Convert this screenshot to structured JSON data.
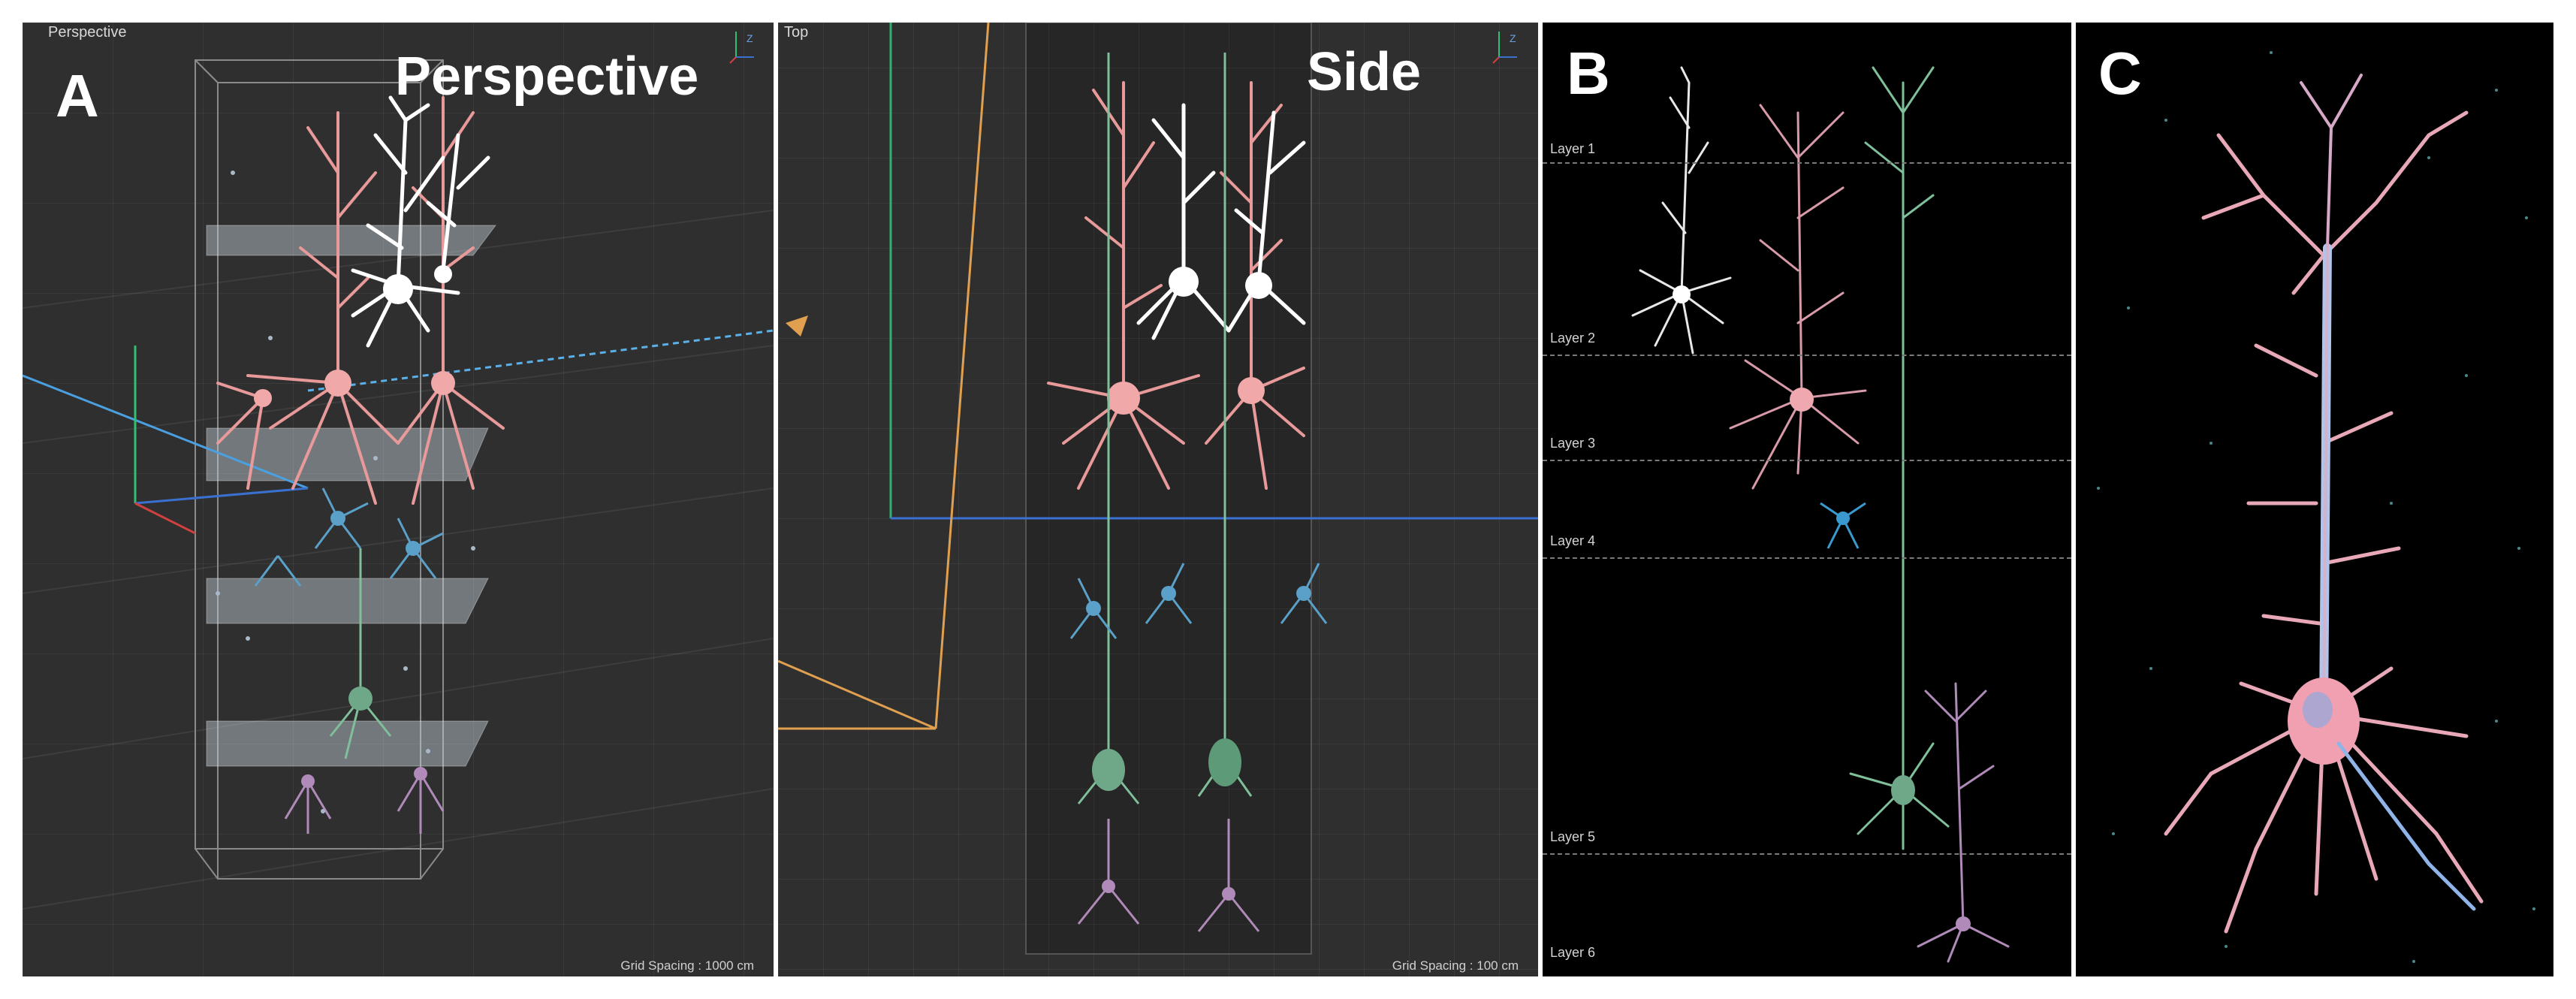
{
  "panel_a": {
    "viewport_label": "Perspective",
    "letter": "A",
    "title": "Perspective",
    "grid_spacing": "Grid Spacing : 1000 cm"
  },
  "panel_side": {
    "viewport_label": "Top",
    "title": "Side",
    "grid_spacing": "Grid Spacing : 100 cm"
  },
  "panel_b": {
    "letter": "B",
    "layers": [
      "Layer 1",
      "Layer 2",
      "Layer 3",
      "Layer 4",
      "Layer 5",
      "Layer 6"
    ]
  },
  "panel_c": {
    "letter": "C"
  },
  "axis_labels": {
    "z": "Z"
  },
  "colors": {
    "viewport_bg": "#2f2f2f",
    "pyramidal_pink": "#e89a9a",
    "white_neurons": "#ffffff",
    "green_neurons": "#7fbf9a",
    "blue_neurons": "#5aa0c8",
    "purple_neurons": "#b08ab8",
    "camera_orange": "#e0a050",
    "dendrite_blue": "#8fb4e8"
  }
}
